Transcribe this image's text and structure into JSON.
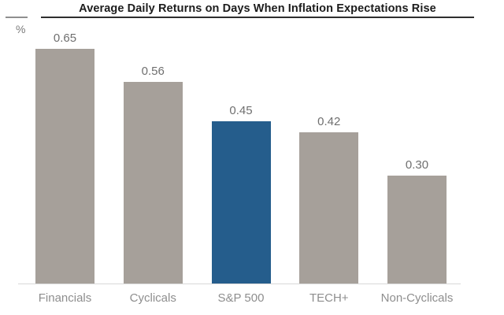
{
  "title": "Average Daily Returns on Days When Inflation Expectations Rise",
  "axis": {
    "unit_label": "%"
  },
  "colors": {
    "bar_default": "#A6A09A",
    "bar_highlight": "#255D8C",
    "title_text": "#1C1C1C",
    "title_rule": "#2E2E2E",
    "left_rule": "#8F8F8F",
    "value_label_text": "#6F6F6F",
    "category_label_text": "#8E8E8E",
    "baseline": "#D8D8D8",
    "background": "#FFFFFF"
  },
  "chart_data": {
    "type": "bar",
    "title": "Average Daily Returns on Days When Inflation Expectations Rise",
    "categories": [
      "Financials",
      "Cyclicals",
      "S&P 500",
      "TECH+",
      "Non-Cyclicals"
    ],
    "values": [
      0.65,
      0.56,
      0.45,
      0.42,
      0.3
    ],
    "value_labels": [
      "0.65",
      "0.56",
      "0.45",
      "0.42",
      "0.30"
    ],
    "bar_colors": [
      "#A6A09A",
      "#A6A09A",
      "#255D8C",
      "#A6A09A",
      "#A6A09A"
    ],
    "highlight_index": 2,
    "highlight_category": "S&P 500",
    "xlabel": "",
    "ylabel": "%",
    "ylim": [
      0,
      0.7
    ],
    "grid": false,
    "legend": "none",
    "data_labels": "above-bars",
    "y_axis_ticks": "none"
  }
}
